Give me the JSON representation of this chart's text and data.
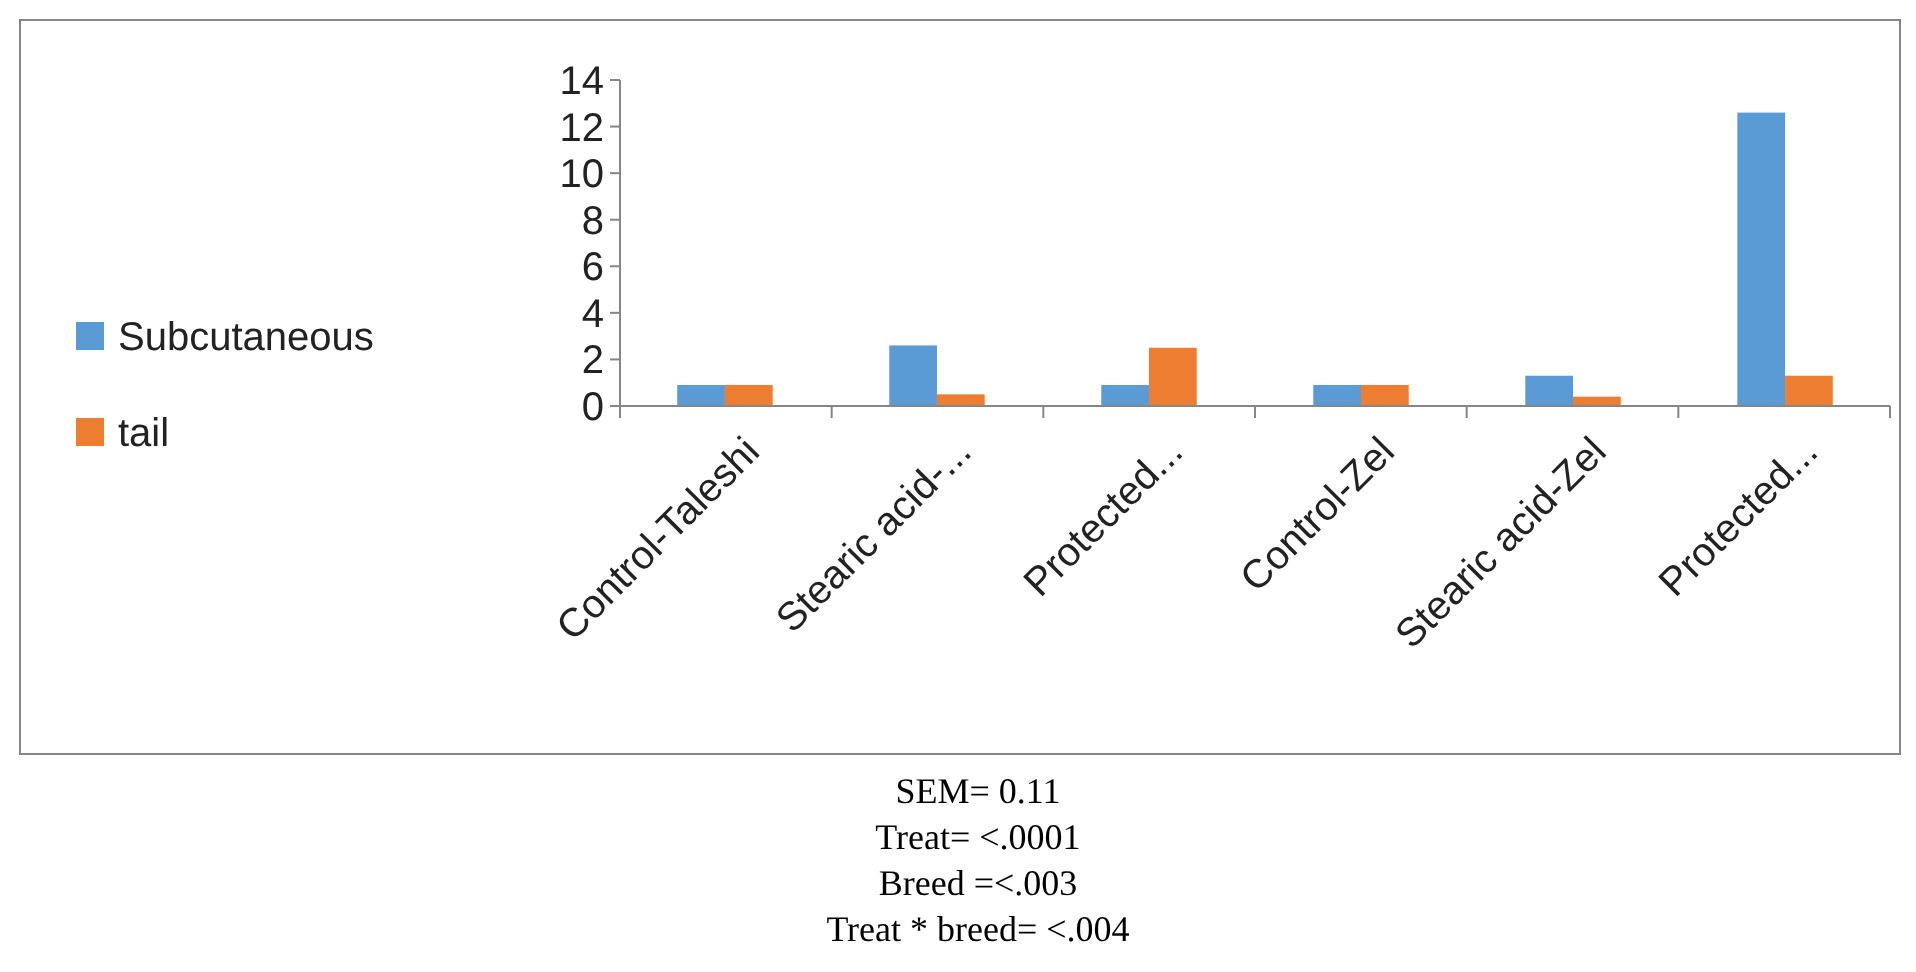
{
  "chart_data": {
    "type": "bar",
    "categories": [
      "Control-Taleshi",
      "Stearic acid-...",
      "Protected...",
      "Control-Zel",
      "Stearic acid-Zel",
      "Protected..."
    ],
    "series": [
      {
        "name": "Subcutaneous",
        "color": "#5b9bd5",
        "values": [
          0.9,
          2.6,
          0.9,
          0.9,
          1.3,
          12.6
        ]
      },
      {
        "name": "tail",
        "color": "#ed7d31",
        "values": [
          0.9,
          0.5,
          2.5,
          0.9,
          0.4,
          1.3
        ]
      }
    ],
    "ylim": [
      0,
      14
    ],
    "yticks": [
      0,
      2,
      4,
      6,
      8,
      10,
      12,
      14
    ],
    "grid": false,
    "legend": "left",
    "annotations": [
      "SEM= 0.11",
      "Treat= <.0001",
      "Breed =<.003",
      "Treat * breed= <.004"
    ]
  }
}
